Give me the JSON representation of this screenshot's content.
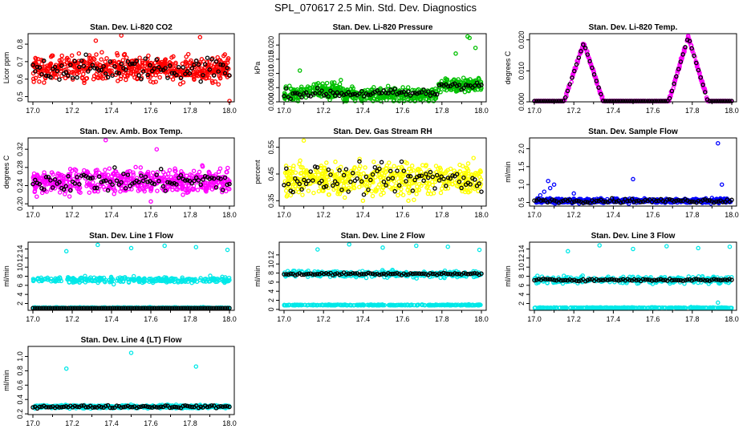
{
  "title": "SPL_070617  2.5 Min. Std. Dev. Diagnostics",
  "chart_data": [
    {
      "type": "scatter",
      "title": "Stan. Dev. Li-820 CO2",
      "ylabel": "Licor ppm",
      "color": "#ff0000",
      "xlim": [
        17.0,
        18.0
      ],
      "ylim": [
        0.47,
        0.86
      ],
      "yticks": [
        0.5,
        0.6,
        0.7,
        0.8
      ],
      "yticklabels": [
        "0.5",
        "0.6",
        "0.7",
        "0.8"
      ],
      "xticks": [
        "17.0",
        "17.2",
        "17.4",
        "17.6",
        "17.8",
        "18.0"
      ],
      "pattern": "noise",
      "base": 0.66,
      "spread": 0.07,
      "highlights": [
        [
          17.32,
          0.82
        ],
        [
          17.45,
          0.85
        ],
        [
          17.85,
          0.84
        ],
        [
          18.0,
          0.47
        ]
      ]
    },
    {
      "type": "scatter",
      "title": "Stan. Dev. Li-820 Pressure",
      "ylabel": "kPa",
      "color": "#00c000",
      "xlim": [
        17.0,
        18.0
      ],
      "ylim": [
        0.0,
        0.024
      ],
      "yticks": [
        0.0,
        0.005,
        0.01,
        0.015,
        0.02
      ],
      "yticklabels": [
        "0.000",
        "0.005",
        "0.010",
        "0.015",
        "0.020"
      ],
      "xticks": [
        "17.0",
        "17.2",
        "17.4",
        "17.6",
        "17.8",
        "18.0"
      ],
      "pattern": "pressure",
      "highlights": [
        [
          17.93,
          0.023
        ],
        [
          17.94,
          0.0225
        ],
        [
          17.97,
          0.019
        ],
        [
          17.87,
          0.017
        ],
        [
          17.08,
          0.011
        ]
      ]
    },
    {
      "type": "scatter",
      "title": "Stan. Dev. Li-820 Temp.",
      "ylabel": "degrees C",
      "color": "#ff00ff",
      "xlim": [
        17.0,
        18.0
      ],
      "ylim": [
        0.0,
        0.022
      ],
      "yticks": [
        0.0,
        0.01,
        0.02
      ],
      "yticklabels": [
        "0.000",
        "0.010",
        "0.020"
      ],
      "xticks": [
        "17.0",
        "17.2",
        "17.4",
        "17.6",
        "17.8",
        "18.0"
      ],
      "pattern": "temp",
      "peaks": [
        [
          17.25,
          0.019
        ],
        [
          17.78,
          0.021
        ]
      ]
    },
    {
      "type": "scatter",
      "title": "Stan. Dev. Amb. Box Temp.",
      "ylabel": "degrees C",
      "color": "#ff00ff",
      "xlim": [
        17.0,
        18.0
      ],
      "ylim": [
        0.195,
        0.345
      ],
      "yticks": [
        0.2,
        0.24,
        0.28,
        0.32
      ],
      "yticklabels": [
        "0.20",
        "0.24",
        "0.28",
        "0.32"
      ],
      "xticks": [
        "17.0",
        "17.2",
        "17.4",
        "17.6",
        "17.8",
        "18.0"
      ],
      "pattern": "noise",
      "base": 0.25,
      "spread": 0.025,
      "highlights": [
        [
          17.37,
          0.34
        ],
        [
          17.63,
          0.32
        ],
        [
          17.6,
          0.205
        ]
      ]
    },
    {
      "type": "scatter",
      "title": "Stan. Dev. Gas Stream RH",
      "ylabel": "percent",
      "color": "#ffff00",
      "xlim": [
        17.0,
        18.0
      ],
      "ylim": [
        0.33,
        0.585
      ],
      "yticks": [
        0.35,
        0.45,
        0.55
      ],
      "yticklabels": [
        "0.35",
        "0.45",
        "0.55"
      ],
      "xticks": [
        "17.0",
        "17.2",
        "17.4",
        "17.6",
        "17.8",
        "18.0"
      ],
      "pattern": "noise",
      "base": 0.43,
      "spread": 0.055,
      "highlights": [
        [
          17.1,
          0.575
        ],
        [
          17.4,
          0.35
        ],
        [
          17.63,
          0.35
        ]
      ]
    },
    {
      "type": "scatter",
      "title": "Stan. Dev. Sample Flow",
      "ylabel": "ml/min",
      "color": "#0000ff",
      "xlim": [
        17.0,
        18.0
      ],
      "ylim": [
        0.4,
        2.3
      ],
      "yticks": [
        0.5,
        1.0,
        1.5,
        2.0
      ],
      "yticklabels": [
        "0.5",
        "1.0",
        "1.5",
        "2.0"
      ],
      "xticks": [
        "17.0",
        "17.2",
        "17.4",
        "17.6",
        "17.8",
        "18.0"
      ],
      "pattern": "noise",
      "base": 0.55,
      "spread": 0.06,
      "highlights": [
        [
          17.07,
          1.1
        ],
        [
          17.08,
          0.9
        ],
        [
          17.05,
          0.8
        ],
        [
          17.03,
          0.7
        ],
        [
          17.1,
          1.0
        ],
        [
          17.2,
          0.75
        ],
        [
          17.5,
          1.15
        ],
        [
          17.93,
          2.15
        ],
        [
          17.95,
          1.0
        ]
      ]
    },
    {
      "type": "scatter",
      "title": "Stan. Dev. Line 1 Flow",
      "ylabel": "ml/min",
      "color": "#00e8e8",
      "xlim": [
        17.0,
        18.0
      ],
      "ylim": [
        0.5,
        15.5
      ],
      "yticks": [
        2,
        4,
        6,
        8,
        10,
        12,
        14
      ],
      "yticklabels": [
        "2",
        "4",
        "6",
        "8",
        "10",
        "12",
        "14"
      ],
      "xticks": [
        "17.0",
        "17.2",
        "17.4",
        "17.6",
        "17.8",
        "18.0"
      ],
      "pattern": "band2",
      "band_top": 7.2,
      "band_spread": 0.6,
      "band_low": 1.0,
      "black_on": "low",
      "highlights": [
        [
          17.17,
          13.5
        ],
        [
          17.33,
          14.9
        ],
        [
          17.5,
          14.2
        ],
        [
          17.67,
          14.7
        ],
        [
          17.83,
          14.4
        ],
        [
          17.99,
          13.8
        ]
      ]
    },
    {
      "type": "scatter",
      "title": "Stan. Dev. Line 2 Flow",
      "ylabel": "ml/min",
      "color": "#00e8e8",
      "xlim": [
        17.0,
        18.0
      ],
      "ylim": [
        -0.2,
        14.8
      ],
      "yticks": [
        0,
        2,
        4,
        6,
        8,
        10,
        12
      ],
      "yticklabels": [
        "0",
        "2",
        "4",
        "6",
        "8",
        "10",
        "12"
      ],
      "xticks": [
        "17.0",
        "17.2",
        "17.4",
        "17.6",
        "17.8",
        "18.0"
      ],
      "pattern": "band2",
      "band_top": 7.8,
      "band_spread": 0.7,
      "band_low": 0.9,
      "black_on": "top",
      "highlights": [
        [
          17.17,
          13.2
        ],
        [
          17.33,
          14.3
        ],
        [
          17.5,
          13.6
        ],
        [
          17.67,
          14.0
        ],
        [
          17.83,
          13.8
        ],
        [
          17.99,
          13.1
        ]
      ]
    },
    {
      "type": "scatter",
      "title": "Stan. Dev. Line 3 Flow",
      "ylabel": "ml/min",
      "color": "#00e8e8",
      "xlim": [
        17.0,
        18.0
      ],
      "ylim": [
        0.5,
        15.5
      ],
      "yticks": [
        2,
        4,
        6,
        8,
        10,
        12,
        14
      ],
      "yticklabels": [
        "2",
        "4",
        "6",
        "8",
        "10",
        "12",
        "14"
      ],
      "xticks": [
        "17.0",
        "17.2",
        "17.4",
        "17.6",
        "17.8",
        "18.0"
      ],
      "pattern": "band2",
      "band_top": 7.2,
      "band_spread": 0.7,
      "band_low": 1.0,
      "black_on": "top",
      "highlights": [
        [
          17.17,
          13.5
        ],
        [
          17.33,
          14.8
        ],
        [
          17.5,
          14.0
        ],
        [
          17.67,
          14.6
        ],
        [
          17.83,
          14.2
        ],
        [
          17.99,
          14.5
        ],
        [
          17.93,
          2.2
        ]
      ]
    },
    {
      "type": "scatter",
      "title": "Stan. Dev. Line 4 (LT) Flow",
      "ylabel": "ml/min",
      "color": "#00e8e8",
      "xlim": [
        17.0,
        18.0
      ],
      "ylim": [
        0.19,
        1.14
      ],
      "yticks": [
        0.2,
        0.4,
        0.6,
        0.8,
        1.0
      ],
      "yticklabels": [
        "0.2",
        "0.4",
        "0.6",
        "0.8",
        "1.0"
      ],
      "xticks": [
        "17.0",
        "17.2",
        "17.4",
        "17.6",
        "17.8",
        "18.0"
      ],
      "pattern": "noise",
      "base": 0.3,
      "spread": 0.02,
      "highlights": [
        [
          17.17,
          0.83
        ],
        [
          17.5,
          1.05
        ],
        [
          17.83,
          0.86
        ]
      ]
    }
  ]
}
